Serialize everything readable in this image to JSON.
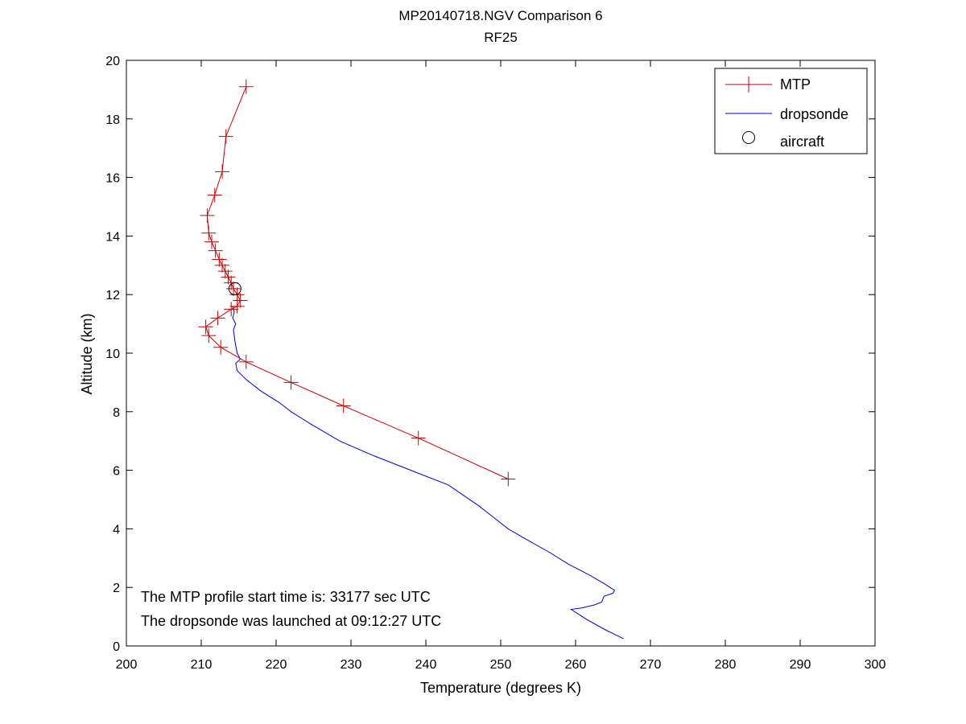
{
  "chart_data": {
    "type": "line",
    "title": "MP20140718.NGV Comparison 6",
    "subtitle": "RF25",
    "xlabel": "Temperature (degrees K)",
    "ylabel": "Altitude (km)",
    "xlim": [
      200,
      300
    ],
    "ylim": [
      0,
      20
    ],
    "xticks": [
      200,
      210,
      220,
      230,
      240,
      250,
      260,
      270,
      280,
      290,
      300
    ],
    "yticks": [
      0,
      2,
      4,
      6,
      8,
      10,
      12,
      14,
      16,
      18,
      20
    ],
    "grid": false,
    "legend_position": "top-right",
    "colors": {
      "mtp": "#cc0000",
      "dropsonde": "#0000cc",
      "aircraft": "#000000"
    },
    "series": [
      {
        "name": "MTP",
        "marker": "plus",
        "points": [
          [
            251.0,
            5.7
          ],
          [
            239.0,
            7.1
          ],
          [
            229.0,
            8.2
          ],
          [
            222.0,
            9.0
          ],
          [
            216.0,
            9.7
          ],
          [
            212.6,
            10.2
          ],
          [
            211.0,
            10.6
          ],
          [
            210.6,
            10.9
          ],
          [
            212.2,
            11.2
          ],
          [
            214.0,
            11.5
          ],
          [
            214.8,
            11.6
          ],
          [
            215.2,
            11.8
          ],
          [
            214.8,
            12.0
          ],
          [
            214.3,
            12.2
          ],
          [
            214.0,
            12.4
          ],
          [
            213.6,
            12.6
          ],
          [
            213.2,
            12.8
          ],
          [
            212.8,
            13.0
          ],
          [
            212.4,
            13.2
          ],
          [
            211.9,
            13.5
          ],
          [
            211.4,
            13.8
          ],
          [
            211.0,
            14.1
          ],
          [
            210.8,
            14.7
          ],
          [
            211.8,
            15.4
          ],
          [
            212.8,
            16.2
          ],
          [
            213.3,
            17.4
          ],
          [
            216.0,
            19.1
          ]
        ]
      },
      {
        "name": "dropsonde",
        "marker": "none",
        "points": [
          [
            266.4,
            0.25
          ],
          [
            264.0,
            0.55
          ],
          [
            261.5,
            0.9
          ],
          [
            259.4,
            1.25
          ],
          [
            260.8,
            1.3
          ],
          [
            262.5,
            1.4
          ],
          [
            263.5,
            1.5
          ],
          [
            263.8,
            1.7
          ],
          [
            265.0,
            1.8
          ],
          [
            265.2,
            1.9
          ],
          [
            264.0,
            2.1
          ],
          [
            262.0,
            2.4
          ],
          [
            259.0,
            2.8
          ],
          [
            256.5,
            3.2
          ],
          [
            253.0,
            3.7
          ],
          [
            251.0,
            4.0
          ],
          [
            249.5,
            4.3
          ],
          [
            247.0,
            4.8
          ],
          [
            243.0,
            5.5
          ],
          [
            238.0,
            6.0
          ],
          [
            233.0,
            6.5
          ],
          [
            228.5,
            7.0
          ],
          [
            224.5,
            7.6
          ],
          [
            222.0,
            8.0
          ],
          [
            220.5,
            8.3
          ],
          [
            218.0,
            8.7
          ],
          [
            216.0,
            9.1
          ],
          [
            214.8,
            9.4
          ],
          [
            214.6,
            9.65
          ],
          [
            215.2,
            9.8
          ],
          [
            214.8,
            10.0
          ],
          [
            214.5,
            10.4
          ],
          [
            214.3,
            10.8
          ],
          [
            214.6,
            11.0
          ],
          [
            214.2,
            11.2
          ],
          [
            214.4,
            11.4
          ],
          [
            214.2,
            11.6
          ]
        ]
      },
      {
        "name": "aircraft",
        "marker": "circle",
        "points": [
          [
            214.5,
            12.2
          ]
        ]
      }
    ],
    "annotations": [
      "The MTP profile start time is: 33177 sec UTC",
      "The dropsonde was launched at 09:12:27 UTC"
    ]
  }
}
